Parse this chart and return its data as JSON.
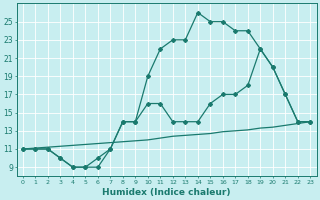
{
  "xlabel": "Humidex (Indice chaleur)",
  "bg_color": "#c8eef0",
  "line_color": "#1a7a6e",
  "xlim": [
    -0.5,
    23.5
  ],
  "ylim": [
    8.0,
    27.0
  ],
  "xticks": [
    0,
    1,
    2,
    3,
    4,
    5,
    6,
    7,
    8,
    9,
    10,
    11,
    12,
    13,
    14,
    15,
    16,
    17,
    18,
    19,
    20,
    21,
    22,
    23
  ],
  "yticks": [
    9,
    11,
    13,
    15,
    17,
    19,
    21,
    23,
    25
  ],
  "line1_x": [
    0,
    1,
    2,
    3,
    4,
    5,
    6,
    7,
    8,
    9,
    10,
    11,
    12,
    13,
    14,
    15,
    16,
    17,
    18,
    19,
    20,
    21,
    22,
    23
  ],
  "line1_y": [
    11,
    11,
    11,
    10,
    9,
    9,
    9,
    11,
    14,
    14,
    19,
    22,
    23,
    23,
    26,
    25,
    25,
    24,
    24,
    22,
    20,
    17,
    14,
    14
  ],
  "line2_x": [
    0,
    1,
    2,
    3,
    4,
    5,
    6,
    7,
    8,
    9,
    10,
    11,
    12,
    13,
    14,
    15,
    16,
    17,
    18,
    19,
    20,
    21,
    22,
    23
  ],
  "line2_y": [
    11,
    11,
    11,
    10,
    9,
    9,
    10,
    11,
    14,
    14,
    16,
    16,
    14,
    14,
    14,
    16,
    17,
    17,
    18,
    22,
    20,
    17,
    14,
    14
  ],
  "line3_x": [
    0,
    1,
    2,
    3,
    4,
    5,
    6,
    7,
    8,
    9,
    10,
    11,
    12,
    13,
    14,
    15,
    16,
    17,
    18,
    19,
    20,
    21,
    22,
    23
  ],
  "line3_y": [
    11.0,
    11.1,
    11.2,
    11.3,
    11.4,
    11.5,
    11.6,
    11.7,
    11.8,
    11.9,
    12.0,
    12.2,
    12.4,
    12.5,
    12.6,
    12.7,
    12.9,
    13.0,
    13.1,
    13.3,
    13.4,
    13.6,
    13.8,
    14.0
  ]
}
